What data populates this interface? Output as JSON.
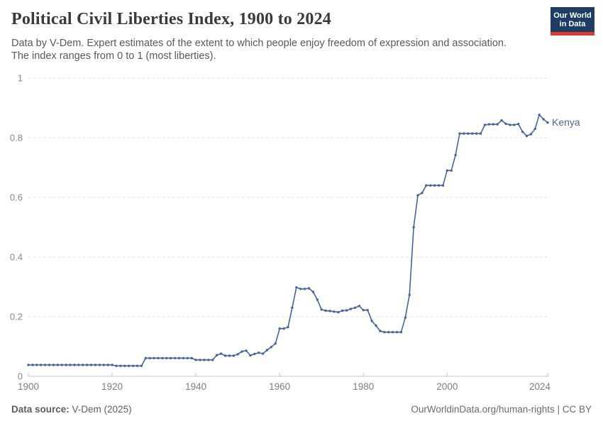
{
  "header": {
    "title": "Political Civil Liberties Index, 1900 to 2024",
    "subtitle_line1": "Data by V-Dem. Expert estimates of the extent to which people enjoy freedom of expression and association.",
    "subtitle_line2": "The index ranges from 0 to 1 (most liberties).",
    "logo": {
      "line1": "Our World",
      "line2": "in Data",
      "bg_color": "#1d3d63",
      "accent_color": "#d93a34"
    }
  },
  "footer": {
    "source_label": "Data source:",
    "source_value": " V-Dem (2025)",
    "credit": "OurWorldinData.org/human-rights | CC BY"
  },
  "chart_data": {
    "type": "line",
    "title": "Political Civil Liberties Index, 1900 to 2024",
    "xlabel": "",
    "ylabel": "",
    "xlim": [
      1900,
      2024
    ],
    "ylim": [
      0,
      1
    ],
    "grid": "horizontal-dashed",
    "x_ticks": [
      1900,
      1920,
      1940,
      1960,
      1980,
      2000,
      2024
    ],
    "y_ticks": [
      0,
      0.2,
      0.4,
      0.6,
      0.8,
      1
    ],
    "end_label": "Kenya",
    "series": [
      {
        "name": "Kenya",
        "color": "#44659c",
        "label_color": "#4c6a9c",
        "x_start": 1900,
        "x_step": 1,
        "values": [
          0.038,
          0.038,
          0.038,
          0.038,
          0.038,
          0.038,
          0.038,
          0.038,
          0.038,
          0.038,
          0.038,
          0.038,
          0.038,
          0.038,
          0.038,
          0.038,
          0.038,
          0.038,
          0.038,
          0.038,
          0.038,
          0.035,
          0.035,
          0.035,
          0.035,
          0.035,
          0.035,
          0.035,
          0.061,
          0.061,
          0.061,
          0.061,
          0.061,
          0.061,
          0.061,
          0.061,
          0.061,
          0.061,
          0.061,
          0.061,
          0.055,
          0.055,
          0.055,
          0.055,
          0.055,
          0.071,
          0.076,
          0.069,
          0.069,
          0.069,
          0.074,
          0.083,
          0.086,
          0.07,
          0.075,
          0.079,
          0.076,
          0.088,
          0.098,
          0.11,
          0.16,
          0.16,
          0.165,
          0.23,
          0.298,
          0.293,
          0.293,
          0.295,
          0.283,
          0.257,
          0.224,
          0.22,
          0.219,
          0.217,
          0.215,
          0.22,
          0.221,
          0.226,
          0.23,
          0.236,
          0.222,
          0.222,
          0.186,
          0.17,
          0.152,
          0.148,
          0.148,
          0.148,
          0.148,
          0.148,
          0.197,
          0.273,
          0.5,
          0.607,
          0.615,
          0.64,
          0.64,
          0.64,
          0.64,
          0.64,
          0.69,
          0.69,
          0.742,
          0.814,
          0.814,
          0.814,
          0.814,
          0.814,
          0.814,
          0.843,
          0.845,
          0.845,
          0.845,
          0.858,
          0.847,
          0.843,
          0.843,
          0.846,
          0.82,
          0.806,
          0.812,
          0.83,
          0.877,
          0.862,
          0.851
        ]
      }
    ]
  }
}
